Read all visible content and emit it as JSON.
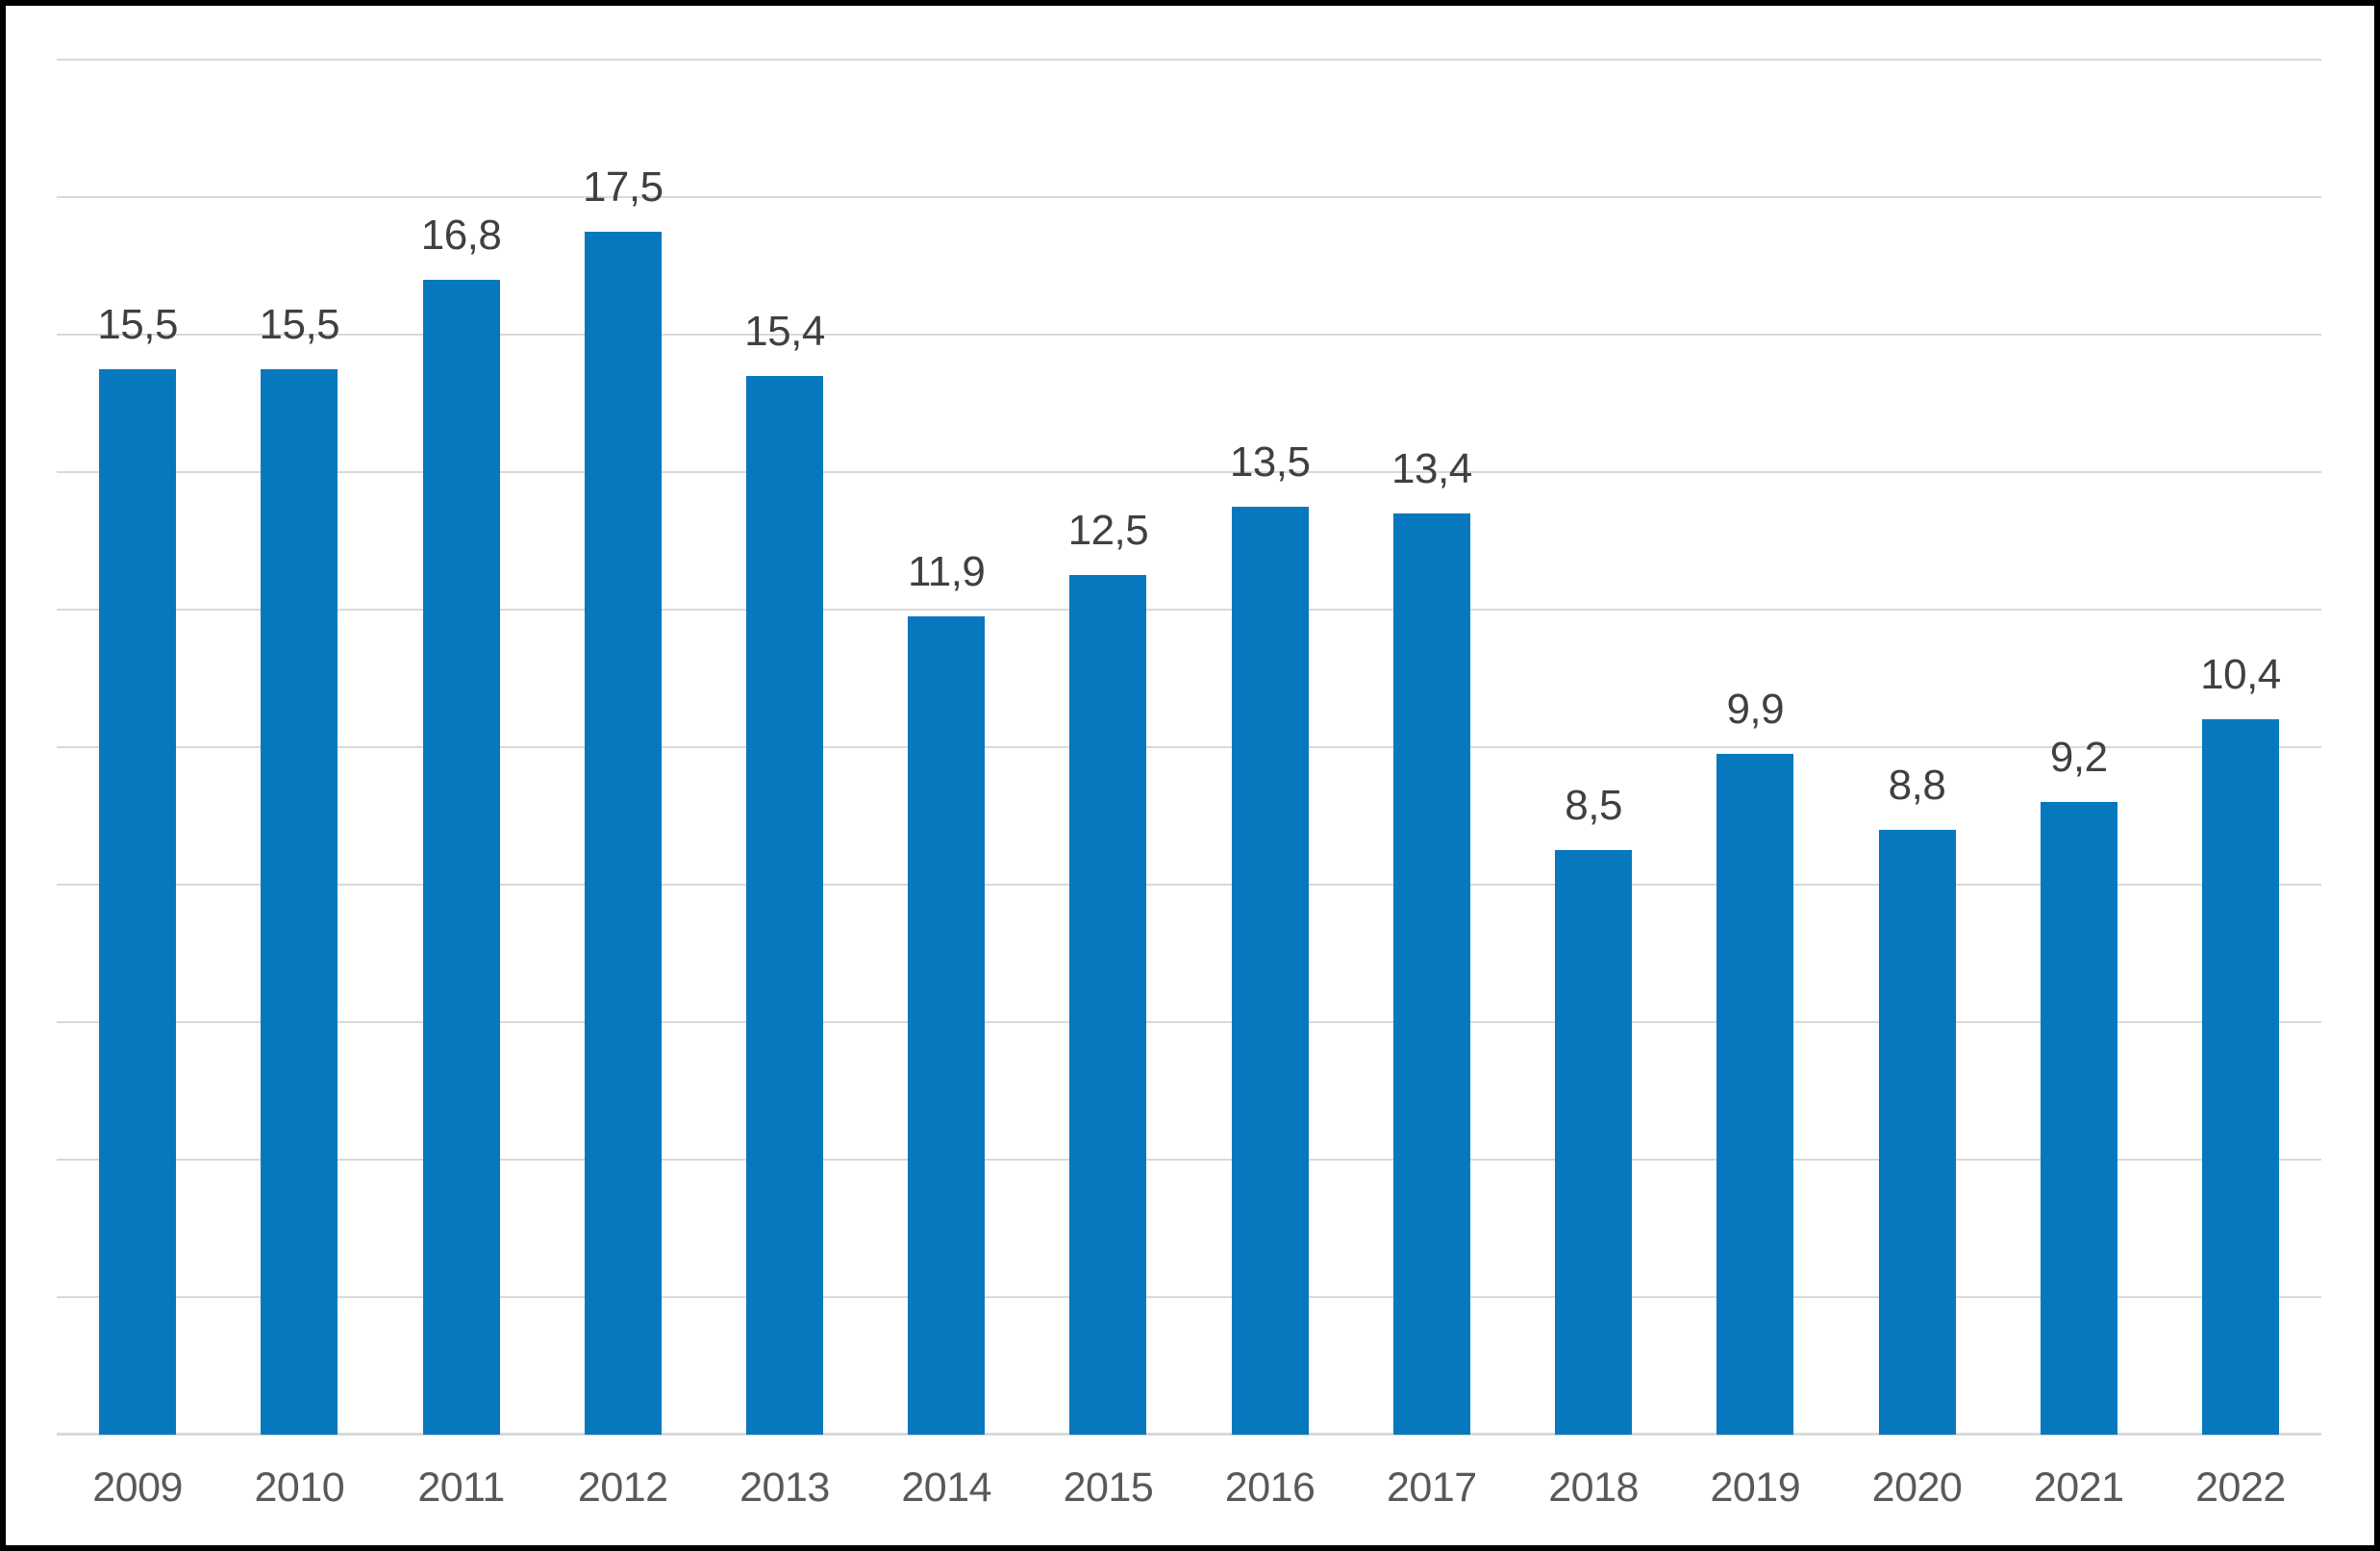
{
  "chart_data": {
    "type": "bar",
    "title": "",
    "xlabel": "",
    "ylabel": "",
    "categories": [
      "2009",
      "2010",
      "2011",
      "2012",
      "2013",
      "2014",
      "2015",
      "2016",
      "2017",
      "2018",
      "2019",
      "2020",
      "2021",
      "2022"
    ],
    "values": [
      15.5,
      15.5,
      16.8,
      17.5,
      15.4,
      11.9,
      12.5,
      13.5,
      13.4,
      8.5,
      9.9,
      8.8,
      9.2,
      10.4
    ],
    "value_labels": [
      "15,5",
      "15,5",
      "16,8",
      "17,5",
      "15,4",
      "11,9",
      "12,5",
      "13,5",
      "13,4",
      "8,5",
      "9,9",
      "8,8",
      "9,2",
      "10,4"
    ],
    "ylim": [
      0,
      20
    ],
    "grid_step": 2,
    "grid": true,
    "legend": false,
    "decimal_separator": ",",
    "colors": {
      "bar": "#0778BE",
      "gridline": "#D9D9D9",
      "axis_line": "#D9D9D9",
      "data_label": "#404040",
      "axis_label": "#595959",
      "background": "#FFFFFF",
      "frame_border": "#000000"
    }
  }
}
